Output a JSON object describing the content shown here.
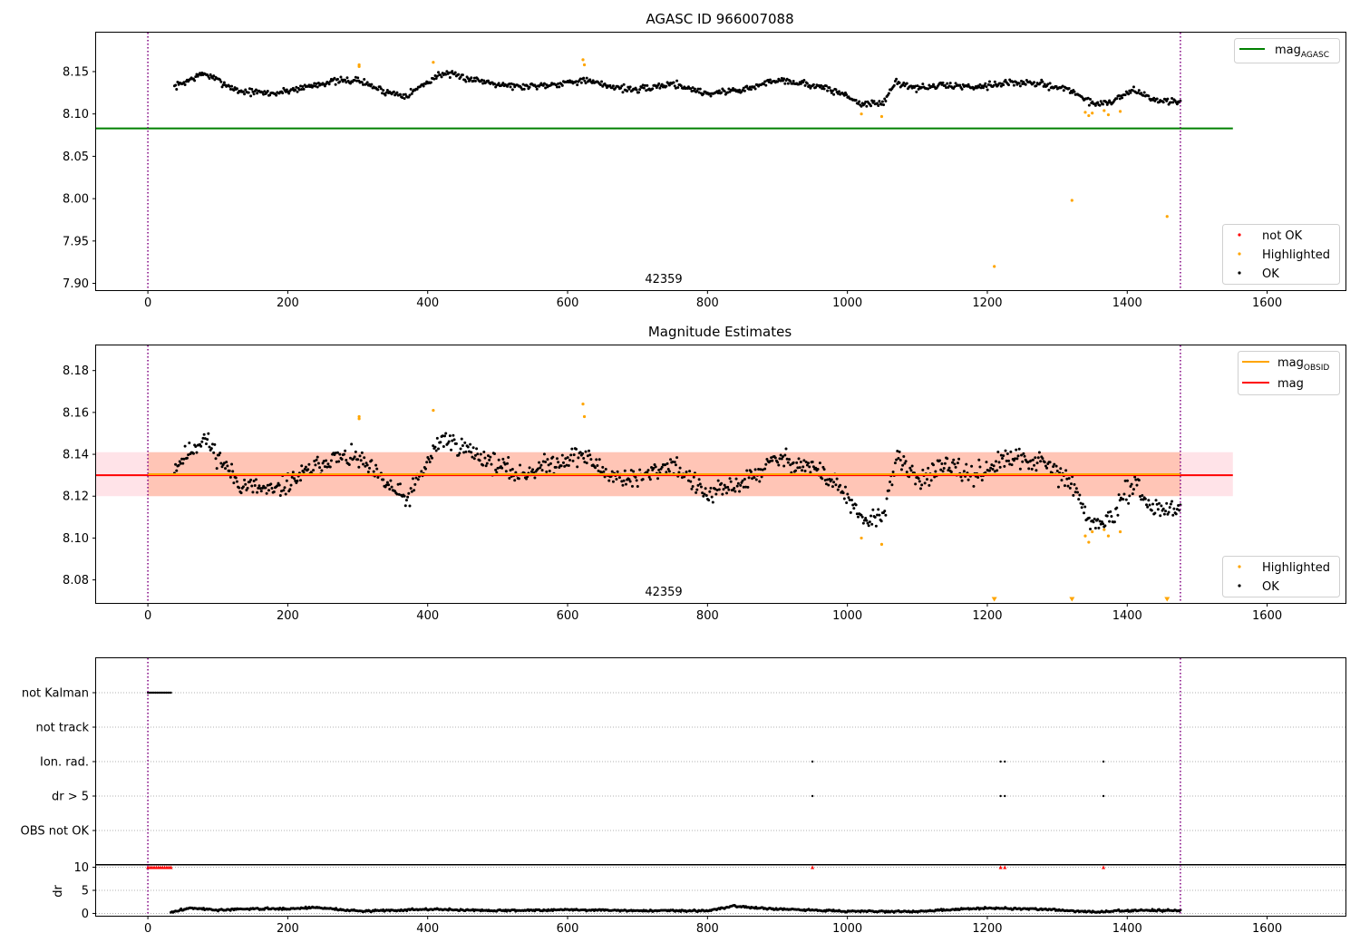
{
  "chart_data": [
    {
      "type": "scatter",
      "title": "AGASC ID 966007088",
      "annotation": "42359",
      "xlim": [
        -74,
        1712
      ],
      "ylim": [
        7.892,
        8.196
      ],
      "x_ticks": [
        0,
        200,
        400,
        600,
        800,
        1000,
        1200,
        1400,
        1600
      ],
      "y_ticks": [
        7.9,
        7.95,
        8.0,
        8.05,
        8.1,
        8.15
      ],
      "x_tick_labels": [
        "0",
        "200",
        "400",
        "600",
        "800",
        "1000",
        "1200",
        "1400",
        "1600"
      ],
      "y_tick_labels": [
        "7.90",
        "7.95",
        "8.00",
        "8.05",
        "8.10",
        "8.15"
      ],
      "vlines": [
        0,
        1476
      ],
      "hlines": [
        {
          "name": "mag_AGASC",
          "value": 8.083,
          "x": [
            -74,
            1551
          ],
          "color": "#008000"
        }
      ],
      "legend_lines": {
        "label": "mag",
        "sub": "AGASC",
        "placement": "upper right"
      },
      "legend_points": {
        "labels": [
          "not OK",
          "Highlighted",
          "OK"
        ],
        "placement": "lower right"
      },
      "series": [
        {
          "name": "OK",
          "color": "#000000",
          "trend": [
            [
              38,
              8.132
            ],
            [
              80,
              8.148
            ],
            [
              130,
              8.127
            ],
            [
              180,
              8.124
            ],
            [
              220,
              8.131
            ],
            [
              260,
              8.138
            ],
            [
              300,
              8.14
            ],
            [
              340,
              8.126
            ],
            [
              370,
              8.122
            ],
            [
              420,
              8.148
            ],
            [
              470,
              8.14
            ],
            [
              530,
              8.132
            ],
            [
              580,
              8.135
            ],
            [
              620,
              8.14
            ],
            [
              660,
              8.133
            ],
            [
              700,
              8.128
            ],
            [
              750,
              8.136
            ],
            [
              800,
              8.124
            ],
            [
              860,
              8.13
            ],
            [
              900,
              8.141
            ],
            [
              950,
              8.134
            ],
            [
              990,
              8.125
            ],
            [
              1020,
              8.112
            ],
            [
              1050,
              8.112
            ],
            [
              1070,
              8.138
            ],
            [
              1100,
              8.13
            ],
            [
              1140,
              8.134
            ],
            [
              1180,
              8.132
            ],
            [
              1230,
              8.137
            ],
            [
              1280,
              8.135
            ],
            [
              1320,
              8.128
            ],
            [
              1350,
              8.112
            ],
            [
              1380,
              8.115
            ],
            [
              1410,
              8.13
            ],
            [
              1430,
              8.118
            ],
            [
              1476,
              8.113
            ]
          ],
          "jitter": 0.005,
          "n": 950,
          "seed": 7
        },
        {
          "name": "Highlighted",
          "color": "#FFA500",
          "points": [
            [
              302,
              8.158
            ],
            [
              302,
              8.156
            ],
            [
              408,
              8.161
            ],
            [
              622,
              8.164
            ],
            [
              624,
              8.158
            ],
            [
              1020,
              8.1
            ],
            [
              1049,
              8.097
            ],
            [
              1210,
              7.92
            ],
            [
              1321,
              7.998
            ],
            [
              1340,
              8.102
            ],
            [
              1345,
              8.098
            ],
            [
              1350,
              8.101
            ],
            [
              1367,
              8.104
            ],
            [
              1373,
              8.099
            ],
            [
              1390,
              8.103
            ],
            [
              1457,
              7.979
            ]
          ]
        },
        {
          "name": "not OK",
          "color": "#FF0000",
          "points": []
        }
      ]
    },
    {
      "type": "scatter",
      "title": "Magnitude Estimates",
      "annotation": "42359",
      "xlim": [
        -74,
        1712
      ],
      "ylim": [
        8.069,
        8.192
      ],
      "x_ticks": [
        0,
        200,
        400,
        600,
        800,
        1000,
        1200,
        1400,
        1600
      ],
      "y_ticks": [
        8.08,
        8.1,
        8.12,
        8.14,
        8.16,
        8.18
      ],
      "x_tick_labels": [
        "0",
        "200",
        "400",
        "600",
        "800",
        "1000",
        "1200",
        "1400",
        "1600"
      ],
      "y_tick_labels": [
        "8.08",
        "8.10",
        "8.12",
        "8.14",
        "8.16",
        "8.18"
      ],
      "vlines": [
        0,
        1476
      ],
      "bands": [
        {
          "name": "mag band",
          "x": [
            -74,
            1551
          ],
          "y": [
            8.12,
            8.141
          ],
          "color": "#FFC0CB",
          "opacity": 0.45
        },
        {
          "name": "mag_OBSID band",
          "x": [
            0,
            1476
          ],
          "y": [
            8.12,
            8.141
          ],
          "color": "#FFA07A",
          "opacity": 0.45
        }
      ],
      "hlines": [
        {
          "name": "mag",
          "value": 8.13,
          "x": [
            -74,
            1551
          ],
          "color": "#FF0000"
        },
        {
          "name": "mag_OBSID",
          "value": 8.1305,
          "x": [
            0,
            1476
          ],
          "color": "#FFA500"
        }
      ],
      "legend_lines": {
        "labels": [
          "mag",
          "mag"
        ],
        "subs": [
          "OBSID",
          ""
        ],
        "placement": "upper right"
      },
      "legend_points": {
        "labels": [
          "Highlighted",
          "OK"
        ],
        "placement": "lower right"
      },
      "series": [
        {
          "name": "OK",
          "color": "#000000",
          "trend": [
            [
              38,
              8.134
            ],
            [
              80,
              8.148
            ],
            [
              130,
              8.126
            ],
            [
              180,
              8.122
            ],
            [
              220,
              8.13
            ],
            [
              260,
              8.138
            ],
            [
              300,
              8.138
            ],
            [
              340,
              8.126
            ],
            [
              370,
              8.118
            ],
            [
              420,
              8.148
            ],
            [
              470,
              8.14
            ],
            [
              530,
              8.13
            ],
            [
              580,
              8.136
            ],
            [
              620,
              8.14
            ],
            [
              660,
              8.13
            ],
            [
              700,
              8.128
            ],
            [
              750,
              8.136
            ],
            [
              800,
              8.12
            ],
            [
              860,
              8.128
            ],
            [
              900,
              8.138
            ],
            [
              950,
              8.134
            ],
            [
              990,
              8.124
            ],
            [
              1020,
              8.108
            ],
            [
              1050,
              8.11
            ],
            [
              1070,
              8.138
            ],
            [
              1100,
              8.128
            ],
            [
              1140,
              8.134
            ],
            [
              1180,
              8.13
            ],
            [
              1230,
              8.138
            ],
            [
              1280,
              8.136
            ],
            [
              1320,
              8.126
            ],
            [
              1350,
              8.106
            ],
            [
              1380,
              8.11
            ],
            [
              1410,
              8.128
            ],
            [
              1430,
              8.115
            ],
            [
              1476,
              8.113
            ]
          ],
          "jitter": 0.006,
          "n": 950,
          "seed": 11
        },
        {
          "name": "Highlighted",
          "color": "#FFA500",
          "points": [
            [
              302,
              8.158
            ],
            [
              302,
              8.157
            ],
            [
              408,
              8.161
            ],
            [
              622,
              8.164
            ],
            [
              624,
              8.158
            ],
            [
              1020,
              8.1
            ],
            [
              1049,
              8.097
            ],
            [
              1340,
              8.101
            ],
            [
              1345,
              8.098
            ],
            [
              1350,
              8.103
            ],
            [
              1367,
              8.104
            ],
            [
              1373,
              8.101
            ],
            [
              1390,
              8.103
            ]
          ]
        },
        {
          "name": "Highlighted (below axis)",
          "color": "#FFA500",
          "marker": "triangle-down",
          "points": [
            [
              1210,
              8.0705
            ],
            [
              1321,
              8.0705
            ],
            [
              1457,
              8.0705
            ]
          ]
        }
      ]
    },
    {
      "type": "scatter",
      "xlim": [
        -74,
        1712
      ],
      "categories": [
        "not Kalman",
        "not track",
        "Ion. rad.",
        "dr > 5",
        "OBS not OK"
      ],
      "flags": [
        {
          "category": "not Kalman",
          "x_range": [
            0,
            33
          ]
        },
        {
          "category": "not track",
          "x_range": []
        },
        {
          "category": "Ion. rad.",
          "x": [
            950,
            1219,
            1225,
            1366
          ]
        },
        {
          "category": "dr > 5",
          "x": [
            950,
            1219,
            1225,
            1366
          ]
        },
        {
          "category": "OBS not OK",
          "x": []
        }
      ],
      "vlines": [
        0,
        1476
      ]
    },
    {
      "type": "scatter",
      "ylabel": "dr",
      "xlim": [
        -74,
        1712
      ],
      "ylim": [
        -0.5,
        10.5
      ],
      "x_ticks": [
        0,
        200,
        400,
        600,
        800,
        1000,
        1200,
        1400,
        1600
      ],
      "y_ticks": [
        0,
        5,
        10
      ],
      "x_tick_labels": [
        "0",
        "200",
        "400",
        "600",
        "800",
        "1000",
        "1200",
        "1400",
        "1600"
      ],
      "y_tick_labels": [
        "0",
        "5",
        "10"
      ],
      "hline": 10,
      "vlines": [
        0,
        1476
      ],
      "series": [
        {
          "name": "dr",
          "color": "#000000",
          "trend": [
            [
              33,
              0.2
            ],
            [
              60,
              1.2
            ],
            [
              100,
              0.7
            ],
            [
              150,
              1.0
            ],
            [
              200,
              1.0
            ],
            [
              240,
              1.3
            ],
            [
              300,
              0.5
            ],
            [
              400,
              0.9
            ],
            [
              500,
              0.6
            ],
            [
              600,
              0.8
            ],
            [
              700,
              0.6
            ],
            [
              800,
              0.6
            ],
            [
              840,
              1.6
            ],
            [
              900,
              0.9
            ],
            [
              1000,
              0.5
            ],
            [
              1100,
              0.4
            ],
            [
              1200,
              1.2
            ],
            [
              1280,
              0.9
            ],
            [
              1350,
              0.3
            ],
            [
              1420,
              0.7
            ],
            [
              1476,
              0.6
            ]
          ],
          "jitter": 0.25,
          "n": 900,
          "seed": 3
        },
        {
          "name": "dr > 10",
          "color": "#FF0000",
          "marker": "triangle-up",
          "points": [
            [
              0,
              10
            ],
            [
              3,
              10
            ],
            [
              6,
              10
            ],
            [
              9,
              10
            ],
            [
              12,
              10
            ],
            [
              15,
              10
            ],
            [
              18,
              10
            ],
            [
              21,
              10
            ],
            [
              24,
              10
            ],
            [
              27,
              10
            ],
            [
              30,
              10
            ],
            [
              33,
              10
            ],
            [
              950,
              10
            ],
            [
              1219,
              10
            ],
            [
              1225,
              10
            ],
            [
              1366,
              10
            ]
          ]
        }
      ]
    }
  ]
}
